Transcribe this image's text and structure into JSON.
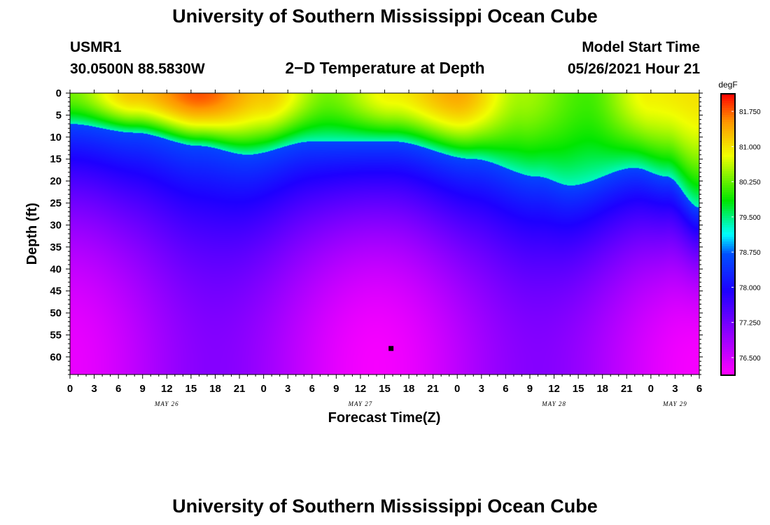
{
  "page": {
    "title_top": "University of Southern Mississippi Ocean Cube",
    "title_bottom": "University of Southern Mississippi Ocean Cube",
    "station": "USMR1",
    "coordinates": "30.0500N  88.5830W",
    "plot_title": "2−D Temperature at Depth",
    "model_start_label": "Model Start Time",
    "model_start_value": "05/26/2021 Hour 21"
  },
  "chart_data": {
    "type": "heatmap",
    "title": "2−D Temperature at Depth",
    "xlabel": "Forecast Time(Z)",
    "ylabel": "Depth (ft)",
    "units": "degF",
    "x_range_hours": [
      0,
      78
    ],
    "y_range_ft": [
      0,
      64
    ],
    "x_ticks": [
      "0",
      "3",
      "6",
      "9",
      "12",
      "15",
      "18",
      "21",
      "0",
      "3",
      "6",
      "9",
      "12",
      "15",
      "18",
      "21",
      "0",
      "3",
      "6",
      "9",
      "12",
      "15",
      "18",
      "21",
      "0",
      "3",
      "6"
    ],
    "date_labels": [
      {
        "label": "MAY 26",
        "hour": 12
      },
      {
        "label": "MAY 27",
        "hour": 36
      },
      {
        "label": "MAY 28",
        "hour": 60
      },
      {
        "label": "MAY 29",
        "hour": 75
      }
    ],
    "y_ticks": [
      0,
      5,
      10,
      15,
      20,
      25,
      30,
      35,
      40,
      45,
      50,
      55,
      60
    ],
    "colorbar": {
      "range": [
        76.125,
        82.125
      ],
      "ticks": [
        "81.750",
        "81.000",
        "80.250",
        "79.500",
        "78.750",
        "78.000",
        "77.250",
        "76.500"
      ]
    },
    "marker": {
      "hour": 39.75,
      "depth_ft": 58
    },
    "surface_temp_degF": [
      80.3,
      81.2,
      81.8,
      81.2,
      80.3,
      80.9,
      81.4,
      80.5,
      80.1,
      80.9,
      81.0
    ],
    "thermocline_depth_ft": [
      7,
      9,
      12,
      14,
      11,
      11,
      15,
      19,
      21,
      17,
      19,
      26
    ],
    "deep_temp_degF": [
      76.3,
      77.1,
      76.2,
      77.1,
      76.2
    ],
    "profile_hours": [
      0,
      8,
      16,
      24,
      32,
      40,
      48,
      56,
      64,
      72,
      78
    ],
    "thermocline_hours": [
      0,
      8,
      16,
      22,
      30,
      40,
      50,
      58,
      62,
      70,
      74,
      78
    ],
    "deep_hours": [
      0,
      18,
      38,
      58,
      78
    ]
  }
}
